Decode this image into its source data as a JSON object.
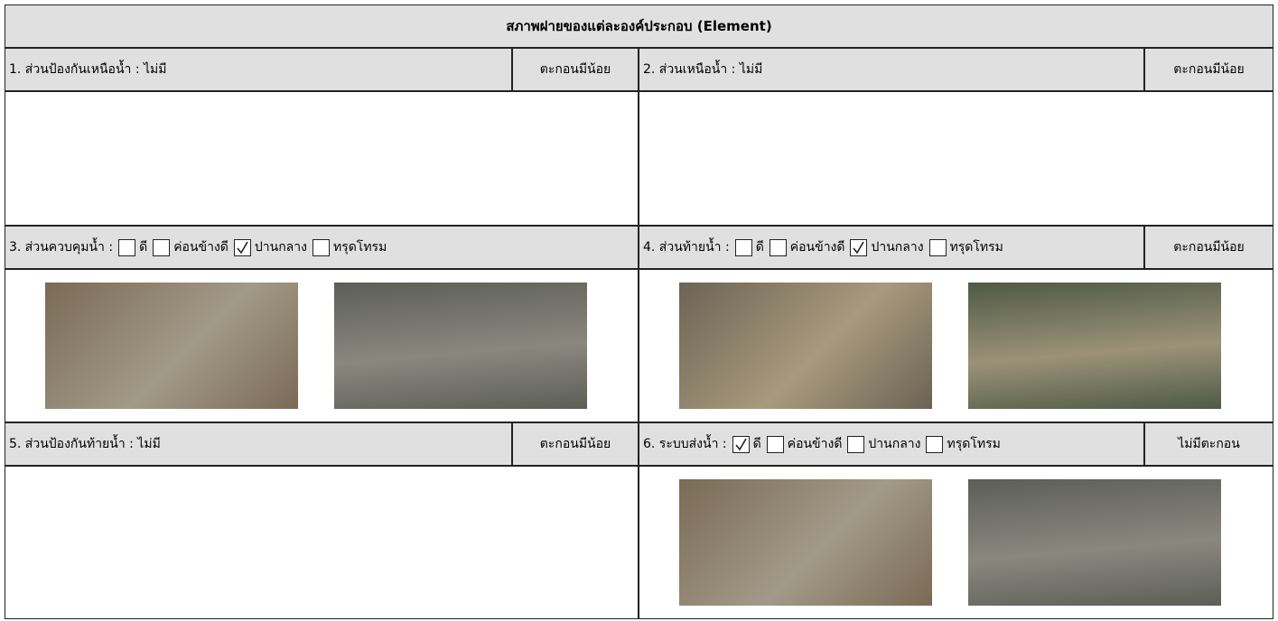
{
  "header": {
    "title": "สภาพฝายของแต่ละองค์ประกอบ (Element)"
  },
  "sections": [
    {
      "label": "1. ส่วนป้องกันเหนือน้ำ : ไม่มี",
      "status": "ตะกอนมีน้อย"
    },
    {
      "label": "2. ส่วนเหนือน้ำ : ไม่มี",
      "status": "ตะกอนมีน้อย"
    },
    {
      "label": "3. ส่วนควบคุมน้ำ :",
      "options": [
        {
          "text": "ดี",
          "checked": false
        },
        {
          "text": "ค่อนข้างดี",
          "checked": false
        },
        {
          "text": "ปานกลาง",
          "checked": true
        },
        {
          "text": "ทรุดโทรม",
          "checked": false
        }
      ]
    },
    {
      "label": "4. ส่วนท้ายน้ำ :",
      "options": [
        {
          "text": "ดี",
          "checked": false
        },
        {
          "text": "ค่อนข้างดี",
          "checked": false
        },
        {
          "text": "ปานกลาง",
          "checked": true
        },
        {
          "text": "ทรุดโทรม",
          "checked": false
        }
      ],
      "status": "ตะกอนมีน้อย"
    },
    {
      "label": "5. ส่วนป้องกันท้ายน้ำ : ไม่มี",
      "status": "ตะกอนมีน้อย"
    },
    {
      "label": "6. ระบบส่งน้ำ :",
      "options": [
        {
          "text": "ดี",
          "checked": true
        },
        {
          "text": "ค่อนข้างดี",
          "checked": false
        },
        {
          "text": "ปานกลาง",
          "checked": false
        },
        {
          "text": "ทรุดโทรม",
          "checked": false
        }
      ],
      "status": "ไม่มีตะกอน"
    }
  ]
}
